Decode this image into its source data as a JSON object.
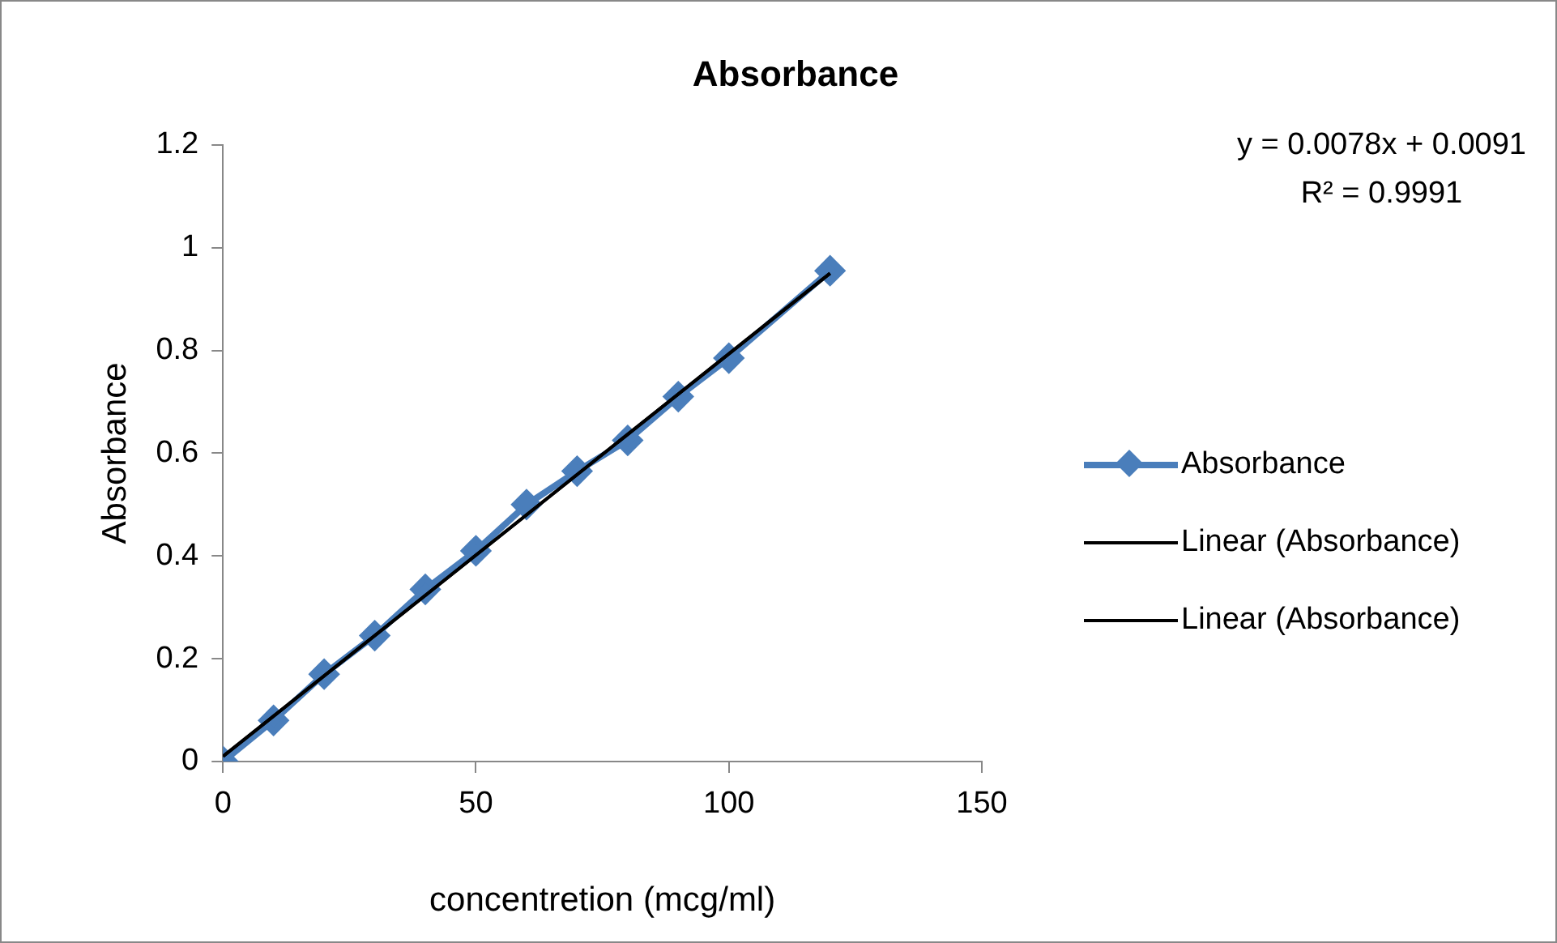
{
  "chart_data": {
    "type": "scatter",
    "title": "Absorbance",
    "xlabel": "concentretion (mcg/ml)",
    "ylabel": "Absorbance",
    "xlim": [
      0,
      150
    ],
    "xticks": [
      0,
      50,
      100,
      150
    ],
    "ylim": [
      0,
      1.2
    ],
    "yticks": [
      0,
      0.2,
      0.4,
      0.6,
      0.8,
      1,
      1.2
    ],
    "grid": false,
    "legend": "right",
    "marker": "diamond",
    "line_style": "solid",
    "annotations": [
      "y = 0.0078x + 0.0091",
      "R² = 0.9991"
    ],
    "series": [
      {
        "name": "Absorbance",
        "type": "line",
        "color": "#4a7ebb",
        "x": [
          0,
          10,
          20,
          30,
          40,
          50,
          60,
          70,
          80,
          90,
          100,
          120
        ],
        "values": [
          0,
          0.08,
          0.17,
          0.245,
          0.335,
          0.41,
          0.5,
          0.565,
          0.625,
          0.71,
          0.785,
          0.955
        ]
      },
      {
        "name": "Linear (Absorbance)",
        "type": "line",
        "color": "#000000",
        "marker": "none",
        "x": [
          0,
          120
        ],
        "values": [
          0.01,
          0.95
        ]
      },
      {
        "name": "Linear (Absorbance)",
        "type": "line",
        "color": "#000000",
        "marker": "none",
        "x": [
          0,
          120
        ],
        "values": [
          0.01,
          0.95
        ]
      }
    ]
  }
}
